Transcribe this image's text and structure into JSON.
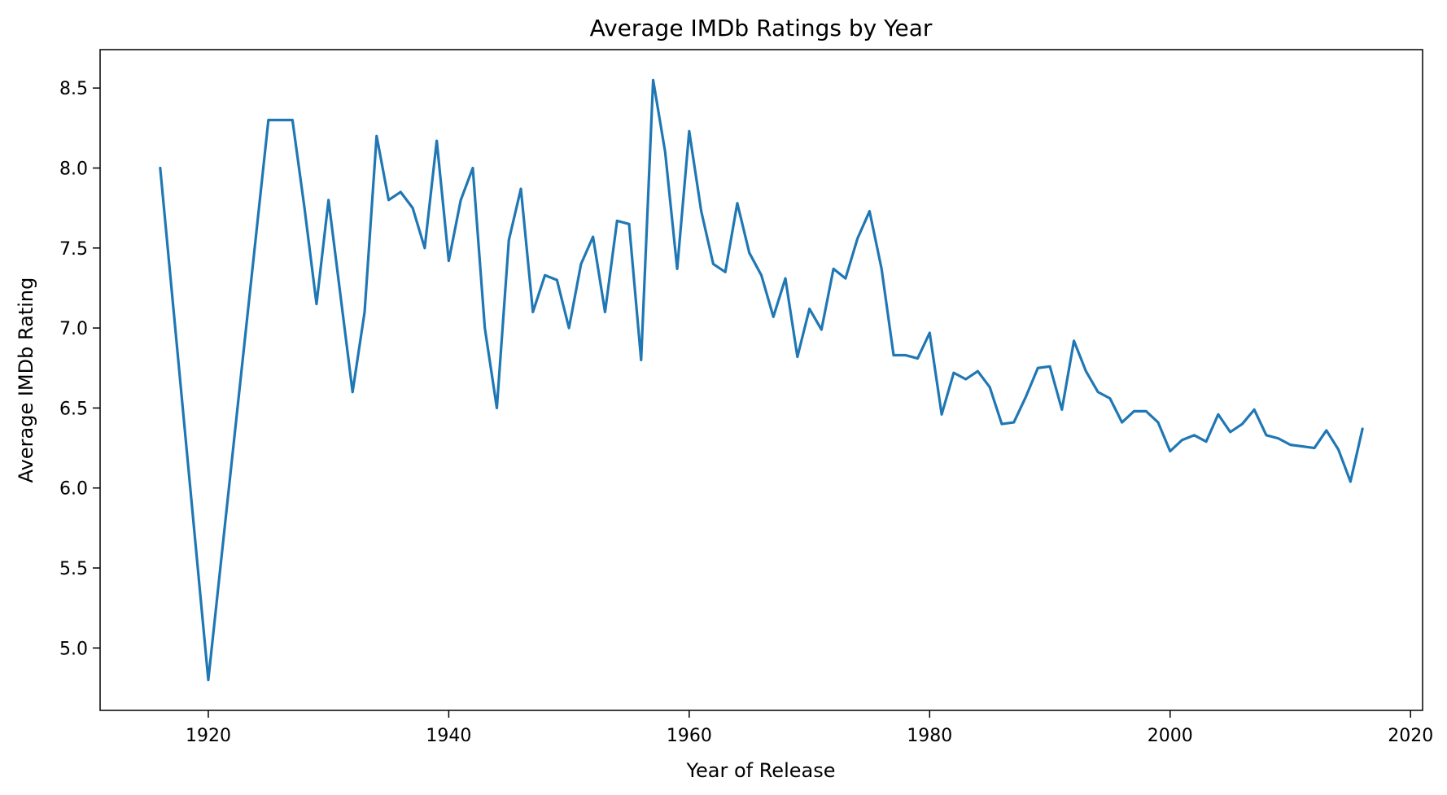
{
  "chart_data": {
    "type": "line",
    "title": "Average IMDb Ratings by Year",
    "xlabel": "Year of Release",
    "ylabel": "Average IMDb Rating",
    "xlim": [
      1911,
      2021
    ],
    "ylim": [
      4.61,
      8.74
    ],
    "xticks": [
      1920,
      1940,
      1960,
      1980,
      2000,
      2020
    ],
    "yticks": [
      5.0,
      5.5,
      6.0,
      6.5,
      7.0,
      7.5,
      8.0,
      8.5
    ],
    "ytick_labels": [
      "5.0",
      "5.5",
      "6.0",
      "6.5",
      "7.0",
      "7.5",
      "8.0",
      "8.5"
    ],
    "grid": false,
    "series": [
      {
        "color": "#1f77b4",
        "x": [
          1916,
          1920,
          1925,
          1926,
          1927,
          1928,
          1929,
          1930,
          1932,
          1933,
          1934,
          1935,
          1936,
          1937,
          1938,
          1939,
          1940,
          1941,
          1942,
          1943,
          1944,
          1945,
          1946,
          1947,
          1948,
          1949,
          1950,
          1951,
          1952,
          1953,
          1954,
          1955,
          1956,
          1957,
          1958,
          1959,
          1960,
          1961,
          1962,
          1963,
          1964,
          1965,
          1966,
          1967,
          1968,
          1969,
          1970,
          1971,
          1972,
          1973,
          1974,
          1975,
          1976,
          1977,
          1978,
          1979,
          1980,
          1981,
          1982,
          1983,
          1984,
          1985,
          1986,
          1987,
          1988,
          1989,
          1990,
          1991,
          1992,
          1993,
          1994,
          1995,
          1996,
          1997,
          1998,
          1999,
          2000,
          2001,
          2002,
          2003,
          2004,
          2005,
          2006,
          2007,
          2008,
          2009,
          2010,
          2011,
          2012,
          2013,
          2014,
          2015,
          2016
        ],
        "y": [
          8.0,
          4.8,
          8.3,
          8.3,
          8.3,
          7.75,
          7.15,
          7.8,
          6.6,
          7.1,
          8.2,
          7.8,
          7.85,
          7.75,
          7.5,
          8.17,
          7.42,
          7.8,
          8.0,
          7.0,
          6.5,
          7.55,
          7.87,
          7.1,
          7.33,
          7.3,
          7.0,
          7.4,
          7.57,
          7.1,
          7.67,
          7.65,
          6.8,
          8.55,
          8.1,
          7.37,
          8.23,
          7.73,
          7.4,
          7.35,
          7.78,
          7.47,
          7.33,
          7.07,
          7.31,
          6.82,
          7.12,
          6.99,
          7.37,
          7.31,
          7.56,
          7.73,
          7.37,
          6.83,
          6.83,
          6.81,
          6.97,
          6.46,
          6.72,
          6.68,
          6.73,
          6.63,
          6.4,
          6.41,
          6.57,
          6.75,
          6.76,
          6.49,
          6.92,
          6.73,
          6.6,
          6.56,
          6.41,
          6.48,
          6.48,
          6.41,
          6.23,
          6.3,
          6.33,
          6.29,
          6.46,
          6.35,
          6.4,
          6.49,
          6.33,
          6.31,
          6.27,
          6.26,
          6.25,
          6.36,
          6.24,
          6.04,
          6.37
        ]
      }
    ]
  }
}
